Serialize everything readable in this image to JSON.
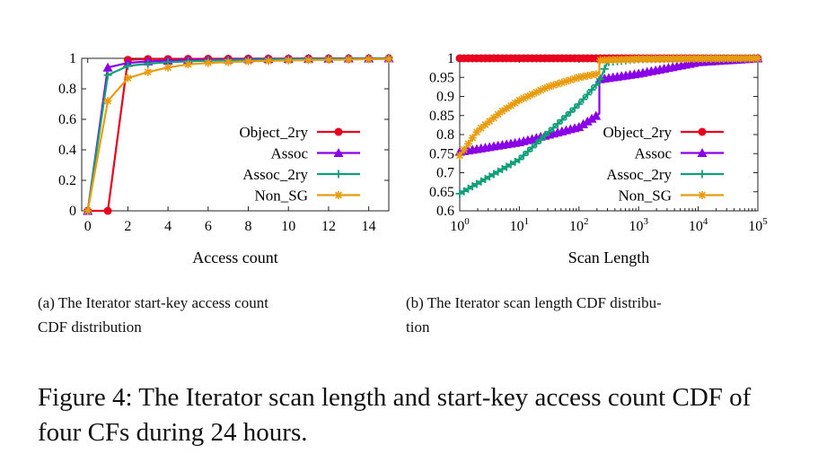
{
  "chart_data": [
    {
      "type": "line",
      "xlabel": "Access count",
      "ylabel": "",
      "xlim": [
        -0.3,
        15
      ],
      "ylim": [
        0,
        1
      ],
      "xticks": [
        "0",
        "2",
        "4",
        "6",
        "8",
        "10",
        "12",
        "14"
      ],
      "yticks": [
        "0",
        "0.2",
        "0.4",
        "0.6",
        "0.8",
        "1"
      ],
      "legend_position": "center-right",
      "grid": false,
      "series": [
        {
          "name": "Object_2ry",
          "color": "#e8001c",
          "marker": "circle",
          "x": [
            0,
            1,
            2,
            3,
            4,
            5,
            6,
            7,
            8,
            9,
            10,
            11,
            12,
            13,
            14,
            15
          ],
          "y": [
            0,
            0,
            0.99,
            0.995,
            0.995,
            0.996,
            0.997,
            0.997,
            0.998,
            0.998,
            0.998,
            0.999,
            0.999,
            0.999,
            0.999,
            1.0
          ]
        },
        {
          "name": "Assoc",
          "color": "#8a00e6",
          "marker": "triangle",
          "x": [
            0,
            1,
            2,
            3,
            4,
            5,
            6,
            7,
            8,
            9,
            10,
            11,
            12,
            13,
            14,
            15
          ],
          "y": [
            0,
            0.94,
            0.97,
            0.98,
            0.985,
            0.99,
            0.99,
            0.993,
            0.995,
            0.996,
            0.997,
            0.998,
            0.998,
            0.999,
            0.999,
            1.0
          ]
        },
        {
          "name": "Assoc_2ry",
          "color": "#119f79",
          "marker": "plus",
          "x": [
            0,
            1,
            2,
            3,
            4,
            5,
            6,
            7,
            8,
            9,
            10,
            11,
            12,
            13,
            14,
            15
          ],
          "y": [
            0,
            0.89,
            0.95,
            0.965,
            0.975,
            0.98,
            0.985,
            0.988,
            0.99,
            0.992,
            0.994,
            0.995,
            0.996,
            0.997,
            0.998,
            0.999
          ]
        },
        {
          "name": "Non_SG",
          "color": "#e89c0e",
          "marker": "asterisk",
          "x": [
            0,
            1,
            2,
            3,
            4,
            5,
            6,
            7,
            8,
            9,
            10,
            11,
            12,
            13,
            14,
            15
          ],
          "y": [
            0,
            0.72,
            0.87,
            0.91,
            0.94,
            0.96,
            0.97,
            0.975,
            0.98,
            0.983,
            0.986,
            0.988,
            0.99,
            0.992,
            0.994,
            0.995
          ]
        }
      ]
    },
    {
      "type": "line",
      "xlabel": "Scan Length",
      "ylabel": "",
      "xscale": "log",
      "xlim": [
        1,
        100000
      ],
      "ylim": [
        0.6,
        1
      ],
      "xticks": [
        {
          "base": "10",
          "exp": "0"
        },
        {
          "base": "10",
          "exp": "1"
        },
        {
          "base": "10",
          "exp": "2"
        },
        {
          "base": "10",
          "exp": "3"
        },
        {
          "base": "10",
          "exp": "4"
        },
        {
          "base": "10",
          "exp": "5"
        }
      ],
      "yticks": [
        "0.6",
        "0.65",
        "0.7",
        "0.75",
        "0.8",
        "0.85",
        "0.9",
        "0.95",
        "1"
      ],
      "legend_position": "center-right",
      "grid": false,
      "series": [
        {
          "name": "Object_2ry",
          "color": "#e8001c",
          "marker": "circle",
          "x": [
            1,
            100000
          ],
          "y": [
            1.0,
            1.0
          ]
        },
        {
          "name": "Assoc",
          "color": "#8a00e6",
          "marker": "triangle",
          "x": [
            1,
            10,
            100,
            220,
            220,
            1000,
            10000,
            100000
          ],
          "y": [
            0.755,
            0.78,
            0.82,
            0.855,
            0.945,
            0.96,
            0.99,
            1.0
          ]
        },
        {
          "name": "Assoc_2ry",
          "color": "#119f79",
          "marker": "plus",
          "x": [
            1,
            10,
            100,
            220,
            300,
            1000,
            10000,
            100000
          ],
          "y": [
            0.645,
            0.735,
            0.88,
            0.94,
            0.99,
            0.998,
            0.999,
            1.0
          ]
        },
        {
          "name": "Non_SG",
          "color": "#e89c0e",
          "marker": "asterisk",
          "x": [
            1,
            2,
            5,
            10,
            30,
            100,
            220,
            220,
            1000,
            10000,
            100000
          ],
          "y": [
            0.745,
            0.81,
            0.86,
            0.89,
            0.925,
            0.95,
            0.96,
            0.995,
            0.998,
            0.999,
            1.0
          ]
        }
      ]
    }
  ],
  "subcaptions": {
    "a": {
      "line1": "(a)  The  Iterator  start-key  access  count",
      "line2": "CDF distribution"
    },
    "b": {
      "line1": "(b)  The Iterator scan length CDF distribu-",
      "line2": "tion"
    }
  },
  "caption": "Figure 4: The Iterator scan length and start-key access count CDF of four CFs during 24 hours."
}
